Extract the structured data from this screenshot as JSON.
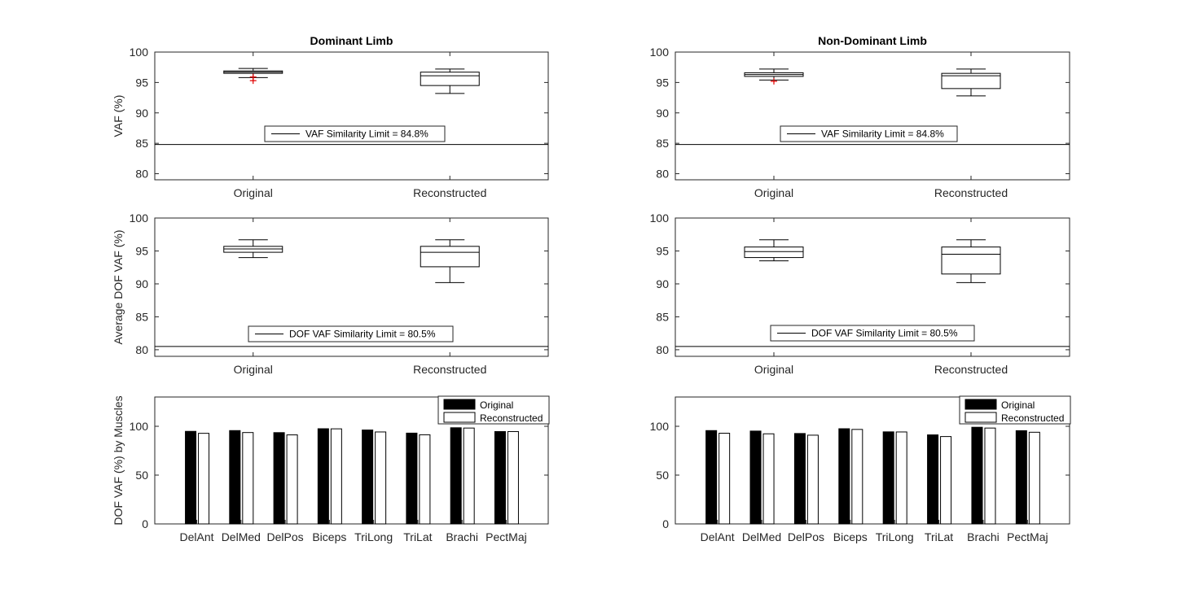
{
  "chart_data": [
    {
      "id": "dom-vaf",
      "type": "box",
      "title": "Dominant Limb",
      "xlabel": "",
      "ylabel": "VAF (%)",
      "ylim": [
        79,
        100
      ],
      "yticks": [
        80,
        85,
        90,
        95,
        100
      ],
      "categories": [
        "Original",
        "Reconstructed"
      ],
      "boxes": [
        {
          "whislo": 95.8,
          "q1": 96.5,
          "med": 96.7,
          "q3": 96.9,
          "whishi": 97.3,
          "outliers": [
            95.3,
            95.9
          ]
        },
        {
          "whislo": 93.2,
          "q1": 94.5,
          "med": 96.1,
          "q3": 96.7,
          "whishi": 97.2,
          "outliers": []
        }
      ],
      "hline": {
        "value": 84.8,
        "label": "VAF Similarity Limit = 84.8%"
      }
    },
    {
      "id": "ndom-vaf",
      "type": "box",
      "title": "Non-Dominant Limb",
      "xlabel": "",
      "ylabel": "",
      "ylim": [
        79,
        100
      ],
      "yticks": [
        80,
        85,
        90,
        95,
        100
      ],
      "categories": [
        "Original",
        "Reconstructed"
      ],
      "boxes": [
        {
          "whislo": 95.4,
          "q1": 96.0,
          "med": 96.3,
          "q3": 96.6,
          "whishi": 97.2,
          "outliers": [
            95.2
          ]
        },
        {
          "whislo": 92.8,
          "q1": 94.0,
          "med": 96.1,
          "q3": 96.5,
          "whishi": 97.2,
          "outliers": []
        }
      ],
      "hline": {
        "value": 84.8,
        "label": "VAF Similarity Limit = 84.8%"
      }
    },
    {
      "id": "dom-dof",
      "type": "box",
      "title": "",
      "xlabel": "",
      "ylabel": "Average DOF VAF (%)",
      "ylim": [
        79,
        100
      ],
      "yticks": [
        80,
        85,
        90,
        95,
        100
      ],
      "categories": [
        "Original",
        "Reconstructed"
      ],
      "boxes": [
        {
          "whislo": 94.0,
          "q1": 94.8,
          "med": 95.3,
          "q3": 95.7,
          "whishi": 96.7,
          "outliers": []
        },
        {
          "whislo": 90.2,
          "q1": 92.6,
          "med": 94.8,
          "q3": 95.7,
          "whishi": 96.7,
          "outliers": []
        }
      ],
      "hline": {
        "value": 80.5,
        "label": "DOF VAF Similarity Limit = 80.5%"
      }
    },
    {
      "id": "ndom-dof",
      "type": "box",
      "title": "",
      "xlabel": "",
      "ylabel": "",
      "ylim": [
        79,
        100
      ],
      "yticks": [
        80,
        85,
        90,
        95,
        100
      ],
      "categories": [
        "Original",
        "Reconstructed"
      ],
      "boxes": [
        {
          "whislo": 93.5,
          "q1": 94.0,
          "med": 94.9,
          "q3": 95.6,
          "whishi": 96.7,
          "outliers": []
        },
        {
          "whislo": 90.2,
          "q1": 91.5,
          "med": 94.5,
          "q3": 95.6,
          "whishi": 96.7,
          "outliers": []
        }
      ],
      "hline": {
        "value": 80.5,
        "label": "DOF VAF Similarity Limit = 80.5%"
      }
    },
    {
      "id": "dom-mus",
      "type": "bar",
      "title": "",
      "xlabel": "",
      "ylabel": "DOF VAF (%) by Muscles",
      "ylim": [
        0,
        130
      ],
      "yticks": [
        0,
        50,
        100
      ],
      "categories": [
        "DelAnt",
        "DelMed",
        "DelPos",
        "Biceps",
        "TriLong",
        "TriLat",
        "Brachi",
        "PectMaj"
      ],
      "series": [
        {
          "name": "Original",
          "color": "#000000",
          "values": [
            94.8,
            95.6,
            93.5,
            97.5,
            96.2,
            93.0,
            98.5,
            94.6
          ]
        },
        {
          "name": "Reconstructed",
          "color": "#ffffff",
          "values": [
            92.8,
            93.6,
            91.2,
            97.4,
            94.2,
            91.3,
            98.2,
            94.6
          ]
        }
      ],
      "legend": "top-right"
    },
    {
      "id": "ndom-mus",
      "type": "bar",
      "title": "",
      "xlabel": "",
      "ylabel": "",
      "ylim": [
        0,
        130
      ],
      "yticks": [
        0,
        50,
        100
      ],
      "categories": [
        "DelAnt",
        "DelMed",
        "DelPos",
        "Biceps",
        "TriLong",
        "TriLat",
        "Brachi",
        "PectMaj"
      ],
      "series": [
        {
          "name": "Original",
          "color": "#000000",
          "values": [
            95.6,
            95.1,
            92.6,
            97.5,
            94.3,
            91.2,
            99.0,
            95.5
          ]
        },
        {
          "name": "Reconstructed",
          "color": "#ffffff",
          "values": [
            92.9,
            92.3,
            90.9,
            96.8,
            94.2,
            89.5,
            98.2,
            93.9
          ]
        }
      ],
      "legend": "top-right"
    }
  ]
}
